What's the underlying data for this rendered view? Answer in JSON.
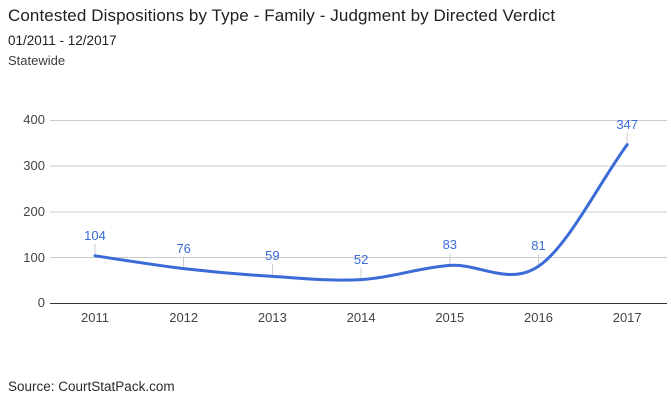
{
  "header": {
    "title": "Contested Dispositions by Type - Family - Judgment by Directed Verdict",
    "date_range": "01/2011 - 12/2017",
    "region": "Statewide"
  },
  "footer": {
    "source": "Source: CourtStatPack.com"
  },
  "colors": {
    "line": "#3a6bd6",
    "data_label": "#3a6bd6",
    "gridline": "#cccccc",
    "baseline": "#333333",
    "axis_label": "#444444"
  },
  "chart_data": {
    "type": "line",
    "title": "Contested Dispositions by Type - Family - Judgment by Directed Verdict",
    "subtitle": "01/2011 - 12/2017",
    "region": "Statewide",
    "categories": [
      "2011",
      "2012",
      "2013",
      "2014",
      "2015",
      "2016",
      "2017"
    ],
    "series": [
      {
        "name": "Judgment by Directed Verdict",
        "values": [
          104,
          76,
          59,
          52,
          83,
          81,
          347
        ]
      }
    ],
    "data_labels": [
      "104",
      "76",
      "59",
      "52",
      "83",
      "81",
      "347"
    ],
    "yticks": [
      0,
      100,
      200,
      300,
      400
    ],
    "ylim": [
      0,
      400
    ],
    "xlabel": "",
    "ylabel": "",
    "grid": true,
    "legend": "none",
    "curve": "smooth"
  }
}
